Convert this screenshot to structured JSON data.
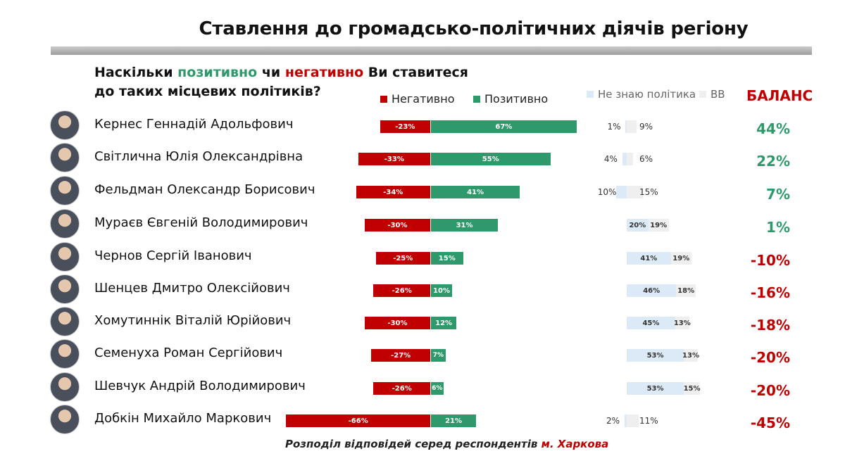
{
  "title": "Ставлення до громадсько-політичних діячів регіону",
  "question": {
    "part1": "Наскільки ",
    "positive_word": "позитивно",
    "part2": " чи ",
    "negative_word": "негативно",
    "part3": " Ви ставитеся",
    "line2": "до таких місцевих політиків?"
  },
  "legend": {
    "negative": "Негативно",
    "positive": "Позитивно",
    "dont_know": "Не знаю політика",
    "hard_to_say": "ВВ",
    "balance": "БАЛАНС"
  },
  "colors": {
    "negative": "#c00000",
    "positive": "#2e9a6b",
    "dont_know": "#dce9f6",
    "hard_to_say": "#efefef"
  },
  "footer": {
    "text": "Розподіл відповідей серед респондентів ",
    "city": "м. Харкова"
  },
  "chart_data": {
    "type": "bar",
    "categories": [
      "Кернес Геннадій Адольфович",
      "Світлична Юлія Олександрівна",
      "Фельдман Олександр Борисович",
      "Мураєв Євгеній Володимирович",
      "Чернов Сергій Іванович",
      "Шенцев Дмитро Олексійович",
      "Хомутиннік Віталій Юрійович",
      "Семенуха Роман Сергійович",
      "Шевчук Андрій Володимирович",
      "Добкін Михайло Маркович"
    ],
    "series": [
      {
        "name": "Негативно",
        "values": [
          -23,
          -33,
          -34,
          -30,
          -25,
          -26,
          -30,
          -27,
          -26,
          -66
        ]
      },
      {
        "name": "Позитивно",
        "values": [
          67,
          55,
          41,
          31,
          15,
          10,
          12,
          7,
          6,
          21
        ]
      },
      {
        "name": "Не знаю політика",
        "values": [
          1,
          4,
          10,
          20,
          41,
          46,
          45,
          53,
          53,
          2
        ]
      },
      {
        "name": "ВВ",
        "values": [
          9,
          6,
          15,
          19,
          19,
          18,
          13,
          13,
          15,
          11
        ]
      }
    ],
    "balance": [
      "44%",
      "22%",
      "7%",
      "1%",
      "-10%",
      "-16%",
      "-18%",
      "-20%",
      "-20%",
      "-45%"
    ],
    "neg_labels": [
      "-23%",
      "-33%",
      "-34%",
      "-30%",
      "-25%",
      "-26%",
      "-30%",
      "-27%",
      "-26%",
      "-66%"
    ],
    "pos_labels": [
      "67%",
      "55%",
      "41%",
      "31%",
      "15%",
      "10%",
      "12%",
      "7%",
      "6%",
      "21%"
    ],
    "dk_labels": [
      "1%",
      "4%",
      "10%",
      "20%",
      "41%",
      "46%",
      "45%",
      "53%",
      "53%",
      "2%"
    ],
    "bv_labels": [
      "9%",
      "6%",
      "15%",
      "19%",
      "19%",
      "18%",
      "13%",
      "13%",
      "15%",
      "11%"
    ]
  }
}
